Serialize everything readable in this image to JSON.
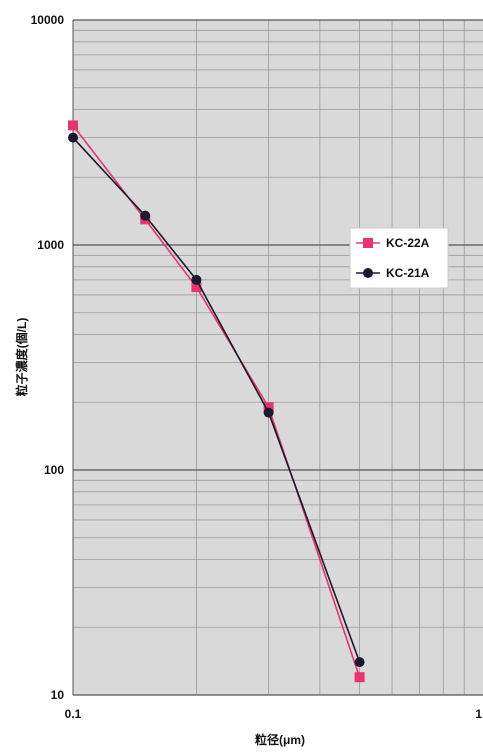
{
  "chart_data": {
    "type": "line",
    "title": "",
    "xlabel": "粒径(μm)",
    "ylabel": "粒子濃度(個/L)",
    "xscale": "log",
    "yscale": "log",
    "xlim": [
      0.1,
      1
    ],
    "ylim": [
      10,
      10000
    ],
    "grid": true,
    "legend_position": "right-middle",
    "x_ticks": [
      {
        "value": 0.1,
        "label": "0.1"
      },
      {
        "value": 1,
        "label": "1"
      }
    ],
    "y_ticks": [
      {
        "value": 10,
        "label": "10"
      },
      {
        "value": 100,
        "label": "100"
      },
      {
        "value": 1000,
        "label": "1000"
      },
      {
        "value": 10000,
        "label": "10000"
      }
    ],
    "series": [
      {
        "name": "KC-22A",
        "color": "#e8336d",
        "marker": "square",
        "points": [
          {
            "x": 0.1,
            "y": 3400
          },
          {
            "x": 0.15,
            "y": 1300
          },
          {
            "x": 0.2,
            "y": 650
          },
          {
            "x": 0.3,
            "y": 190
          },
          {
            "x": 0.5,
            "y": 12
          }
        ]
      },
      {
        "name": "KC-21A",
        "color": "#1a1a2e",
        "marker": "diamond",
        "points": [
          {
            "x": 0.1,
            "y": 3000
          },
          {
            "x": 0.15,
            "y": 1350
          },
          {
            "x": 0.2,
            "y": 700
          },
          {
            "x": 0.3,
            "y": 180
          },
          {
            "x": 0.5,
            "y": 14
          }
        ]
      }
    ]
  }
}
